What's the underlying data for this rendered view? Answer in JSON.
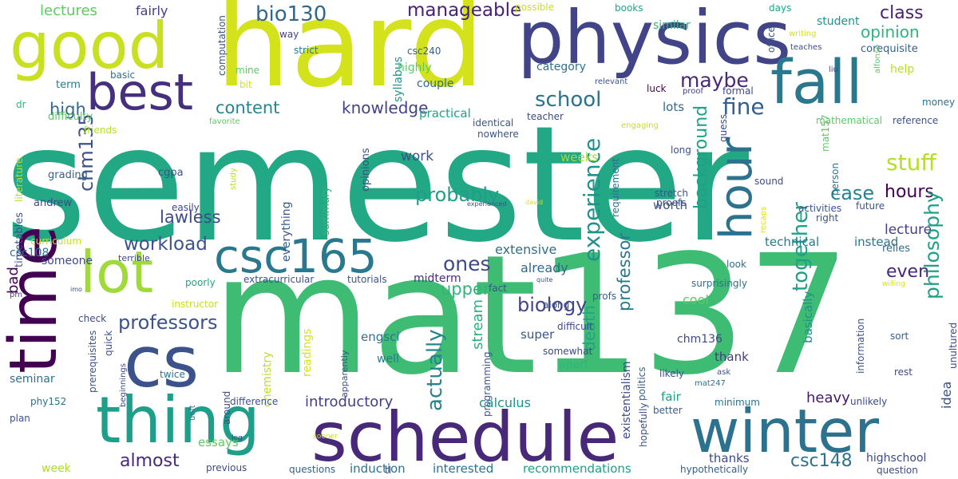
{
  "words": [
    {
      "t": "semester",
      "c": "#22a884"
    },
    {
      "t": "mat137",
      "c": "#3fbc73"
    },
    {
      "t": "hard",
      "c": "#d3e21b"
    },
    {
      "t": "physics",
      "c": "#414487"
    },
    {
      "t": "good",
      "c": "#c8e020"
    },
    {
      "t": "time",
      "c": "#440154"
    },
    {
      "t": "schedule",
      "c": "#482878"
    },
    {
      "t": "winter",
      "c": "#2c728e"
    },
    {
      "t": "cs",
      "c": "#3b528b"
    },
    {
      "t": "thing",
      "c": "#1f9e89"
    },
    {
      "t": "fall",
      "c": "#2a788e"
    },
    {
      "t": "best",
      "c": "#46307e"
    },
    {
      "t": "lot",
      "c": "#a0da39"
    },
    {
      "t": "csc165",
      "c": "#2a788e"
    },
    {
      "t": "hour",
      "c": "#2c728e"
    },
    {
      "t": "bio130",
      "c": "#31688e"
    },
    {
      "t": "manageable",
      "c": "#482173"
    },
    {
      "t": "lectures",
      "c": "#5ec962"
    },
    {
      "t": "fairly",
      "c": "#433e85"
    },
    {
      "t": "class",
      "c": "#482173"
    },
    {
      "t": "opinion",
      "c": "#2fb47c"
    },
    {
      "t": "maybe",
      "c": "#482878"
    },
    {
      "t": "school",
      "c": "#2c728e"
    },
    {
      "t": "fine",
      "c": "#35608d"
    },
    {
      "t": "content",
      "c": "#25858e"
    },
    {
      "t": "knowledge",
      "c": "#414487"
    },
    {
      "t": "high",
      "c": "#31688e"
    },
    {
      "t": "chm135",
      "c": "#3b528b"
    },
    {
      "t": "experience",
      "c": "#21918c"
    },
    {
      "t": "background",
      "c": "#1fa188"
    },
    {
      "t": "stuff",
      "c": "#b5de2b"
    },
    {
      "t": "case",
      "c": "#26828e"
    },
    {
      "t": "hours",
      "c": "#440154"
    },
    {
      "t": "lawless",
      "c": "#3e4989"
    },
    {
      "t": "probably",
      "c": "#1f9e89"
    },
    {
      "t": "actually",
      "c": "#25858e"
    },
    {
      "t": "professor",
      "c": "#2a788e"
    },
    {
      "t": "philosophy",
      "c": "#1fa188"
    },
    {
      "t": "together",
      "c": "#1fa188"
    },
    {
      "t": "even",
      "c": "#482878"
    },
    {
      "t": "ones",
      "c": "#3e4989"
    },
    {
      "t": "professors",
      "c": "#3b528b"
    },
    {
      "t": "workload",
      "c": "#3b528b"
    },
    {
      "t": "biology",
      "c": "#414487"
    },
    {
      "t": "upper",
      "c": "#2fb47c"
    },
    {
      "t": "death",
      "c": "#20a486"
    },
    {
      "t": "almost",
      "c": "#482878"
    },
    {
      "t": "csc148",
      "c": "#2c728e"
    },
    {
      "t": "introductory",
      "c": "#424086"
    },
    {
      "t": "calculus",
      "c": "#21918c"
    },
    {
      "t": "stream",
      "c": "#2ab07f"
    },
    {
      "t": "work",
      "c": "#3b528b"
    },
    {
      "t": "lecture",
      "c": "#433e85"
    },
    {
      "t": "heavy",
      "c": "#481769"
    },
    {
      "t": "idea",
      "c": "#3b528b"
    },
    {
      "t": "midterm",
      "c": "#472d7b"
    },
    {
      "t": "engsci",
      "c": "#2c728e"
    },
    {
      "t": "cool",
      "c": "#5ec962"
    },
    {
      "t": "super",
      "c": "#38588c"
    },
    {
      "t": "weeks",
      "c": "#a0da39"
    },
    {
      "t": "technical",
      "c": "#2a788e"
    },
    {
      "t": "instead",
      "c": "#2c728e"
    },
    {
      "t": "worth",
      "c": "#3b528b"
    },
    {
      "t": "extensive",
      "c": "#2c728e"
    },
    {
      "t": "already",
      "c": "#31688e"
    },
    {
      "t": "thank",
      "c": "#443983"
    },
    {
      "t": "apart",
      "c": "#2fb47c"
    },
    {
      "t": "basically",
      "c": "#21918c"
    },
    {
      "t": "fair",
      "c": "#1f9e89"
    },
    {
      "t": "thanks",
      "c": "#3e4989"
    },
    {
      "t": "highschool",
      "c": "#3e4989"
    },
    {
      "t": "interested",
      "c": "#2c728e"
    },
    {
      "t": "induction",
      "c": "#2c728e"
    },
    {
      "t": "recommendations",
      "c": "#1f9e89"
    },
    {
      "t": "essays",
      "c": "#5ec962"
    },
    {
      "t": "week",
      "c": "#addc30"
    },
    {
      "t": "seminar",
      "c": "#2c728e"
    },
    {
      "t": "readings",
      "c": "#d8e219"
    },
    {
      "t": "chemistry",
      "c": "#bddf26"
    },
    {
      "t": "well",
      "c": "#2a788e"
    },
    {
      "t": "everything",
      "c": "#38588c"
    },
    {
      "t": "summary",
      "c": "#2fb47c"
    },
    {
      "t": "opinions",
      "c": "#3b528b"
    },
    {
      "t": "someone",
      "c": "#3e4989"
    },
    {
      "t": "csc108",
      "c": "#2c728e"
    },
    {
      "t": "curriculum",
      "c": "#c8e020"
    },
    {
      "t": "bad",
      "c": "#440154"
    },
    {
      "t": "timetables",
      "c": "#3b528b"
    },
    {
      "t": "literature",
      "c": "#b5de2b"
    },
    {
      "t": "andrew",
      "c": "#3e4989"
    },
    {
      "t": "grading",
      "c": "#35608d"
    },
    {
      "t": "cgpa",
      "c": "#3b528b"
    },
    {
      "t": "term",
      "c": "#2a788e"
    },
    {
      "t": "dr",
      "c": "#2fb47c"
    },
    {
      "t": "difficulty",
      "c": "#5ec962"
    },
    {
      "t": "basic",
      "c": "#2c728e"
    },
    {
      "t": "mine",
      "c": "#5ec962"
    },
    {
      "t": "bit",
      "c": "#d8e219"
    },
    {
      "t": "way",
      "c": "#414487"
    },
    {
      "t": "strict",
      "c": "#2a788e"
    },
    {
      "t": "syllabus",
      "c": "#21918c"
    },
    {
      "t": "highly",
      "c": "#5ec962"
    },
    {
      "t": "couple",
      "c": "#31688e"
    },
    {
      "t": "category",
      "c": "#2c728e"
    },
    {
      "t": "csc240",
      "c": "#35608d"
    },
    {
      "t": "computation",
      "c": "#3b528b"
    },
    {
      "t": "possible",
      "c": "#cae11f"
    },
    {
      "t": "books",
      "c": "#20a486"
    },
    {
      "t": "similar",
      "c": "#2fb47c"
    },
    {
      "t": "days",
      "c": "#20a486"
    },
    {
      "t": "student",
      "c": "#21918c"
    },
    {
      "t": "office",
      "c": "#38588c"
    },
    {
      "t": "corequisite",
      "c": "#35608d"
    },
    {
      "t": "writing",
      "c": "#d8e219"
    },
    {
      "t": "teaches",
      "c": "#3e4989"
    },
    {
      "t": "alfonso",
      "c": "#5ec962"
    },
    {
      "t": "liu",
      "c": "#3e4989"
    },
    {
      "t": "help",
      "c": "#b5de2b"
    },
    {
      "t": "relevant",
      "c": "#3b528b"
    },
    {
      "t": "luck",
      "c": "#440154"
    },
    {
      "t": "proof",
      "c": "#433e85"
    },
    {
      "t": "formal",
      "c": "#3e4989"
    },
    {
      "t": "money",
      "c": "#2c728e"
    },
    {
      "t": "practical",
      "c": "#20a486"
    },
    {
      "t": "lots",
      "c": "#31688e"
    },
    {
      "t": "teacher",
      "c": "#3e4989"
    },
    {
      "t": "identical",
      "c": "#3b528b"
    },
    {
      "t": "favorite",
      "c": "#5ec962"
    },
    {
      "t": "friends",
      "c": "#b5de2b"
    },
    {
      "t": "nowhere",
      "c": "#3b528b"
    },
    {
      "t": "engaging",
      "c": "#c8e020"
    },
    {
      "t": "mathematical",
      "c": "#5ec962"
    },
    {
      "t": "reference",
      "c": "#3b528b"
    },
    {
      "t": "guess",
      "c": "#3e4989"
    },
    {
      "t": "mat157",
      "c": "#5ec962"
    },
    {
      "t": "long",
      "c": "#3b528b"
    },
    {
      "t": "stretch",
      "c": "#3b528b"
    },
    {
      "t": "requirement",
      "c": "#2c728e"
    },
    {
      "t": "sound",
      "c": "#3e4989"
    },
    {
      "t": "person",
      "c": "#2c728e"
    },
    {
      "t": "future",
      "c": "#3b528b"
    },
    {
      "t": "activities",
      "c": "#3b528b"
    },
    {
      "t": "relies",
      "c": "#31688e"
    },
    {
      "t": "right",
      "c": "#3b528b"
    },
    {
      "t": "proofs",
      "c": "#3b528b"
    },
    {
      "t": "recaps",
      "c": "#d8e219"
    },
    {
      "t": "look",
      "c": "#2c728e"
    },
    {
      "t": "david",
      "c": "#d8e219"
    },
    {
      "t": "experienced",
      "c": "#3b528b"
    },
    {
      "t": "fact",
      "c": "#3b528b"
    },
    {
      "t": "easily",
      "c": "#3e4989"
    },
    {
      "t": "study",
      "c": "#b5de2b"
    },
    {
      "t": "terrible",
      "c": "#3e4989"
    },
    {
      "t": "imo",
      "c": "#3b528b"
    },
    {
      "t": "extracurricular",
      "c": "#3b528b"
    },
    {
      "t": "tutorials",
      "c": "#3b528b"
    },
    {
      "t": "poorly",
      "c": "#20a486"
    },
    {
      "t": "pm",
      "c": "#3e4989"
    },
    {
      "t": "quite",
      "c": "#3b528b"
    },
    {
      "t": "along",
      "c": "#3b528b"
    },
    {
      "t": "profs",
      "c": "#35608d"
    },
    {
      "t": "surprisingly",
      "c": "#2c728e"
    },
    {
      "t": "unultured",
      "c": "#3e4989"
    },
    {
      "t": "willing",
      "c": "#d8e219"
    },
    {
      "t": "difficult",
      "c": "#3e4989"
    },
    {
      "t": "instructor",
      "c": "#c8e020"
    },
    {
      "t": "check",
      "c": "#3e4989"
    },
    {
      "t": "prerequisites",
      "c": "#3b528b"
    },
    {
      "t": "quick",
      "c": "#3b528b"
    },
    {
      "t": "beginnings",
      "c": "#3e4989"
    },
    {
      "t": "twice",
      "c": "#2c728e"
    },
    {
      "t": "programming",
      "c": "#3b528b"
    },
    {
      "t": "apparently",
      "c": "#3b528b"
    },
    {
      "t": "somewhat",
      "c": "#3e4989"
    },
    {
      "t": "existentialism",
      "c": "#3e4989"
    },
    {
      "t": "politics",
      "c": "#35608d"
    },
    {
      "t": "chm136",
      "c": "#3e4989"
    },
    {
      "t": "likely",
      "c": "#3b528b"
    },
    {
      "t": "ask",
      "c": "#3b528b"
    },
    {
      "t": "information",
      "c": "#3b528b"
    },
    {
      "t": "sort",
      "c": "#35608d"
    },
    {
      "t": "rest",
      "c": "#3e4989"
    },
    {
      "t": "mat247",
      "c": "#2c728e"
    },
    {
      "t": "minimum",
      "c": "#2c728e"
    },
    {
      "t": "better",
      "c": "#35608d"
    },
    {
      "t": "unlikely",
      "c": "#3e4989"
    },
    {
      "t": "hopefully",
      "c": "#3b528b"
    },
    {
      "t": "plan",
      "c": "#3b528b"
    },
    {
      "t": "phy152",
      "c": "#2c728e"
    },
    {
      "t": "uoft",
      "c": "#2c728e"
    },
    {
      "t": "around",
      "c": "#3e4989"
    },
    {
      "t": "difference",
      "c": "#3b528b"
    },
    {
      "t": "leg",
      "c": "#3e4989"
    },
    {
      "t": "sooner",
      "c": "#c8e020"
    },
    {
      "t": "previous",
      "c": "#3e4989"
    },
    {
      "t": "questions",
      "c": "#35608d"
    },
    {
      "t": "tl",
      "c": "#3e4989"
    },
    {
      "t": "hypothetically",
      "c": "#35608d"
    },
    {
      "t": "question",
      "c": "#3e4989"
    }
  ]
}
